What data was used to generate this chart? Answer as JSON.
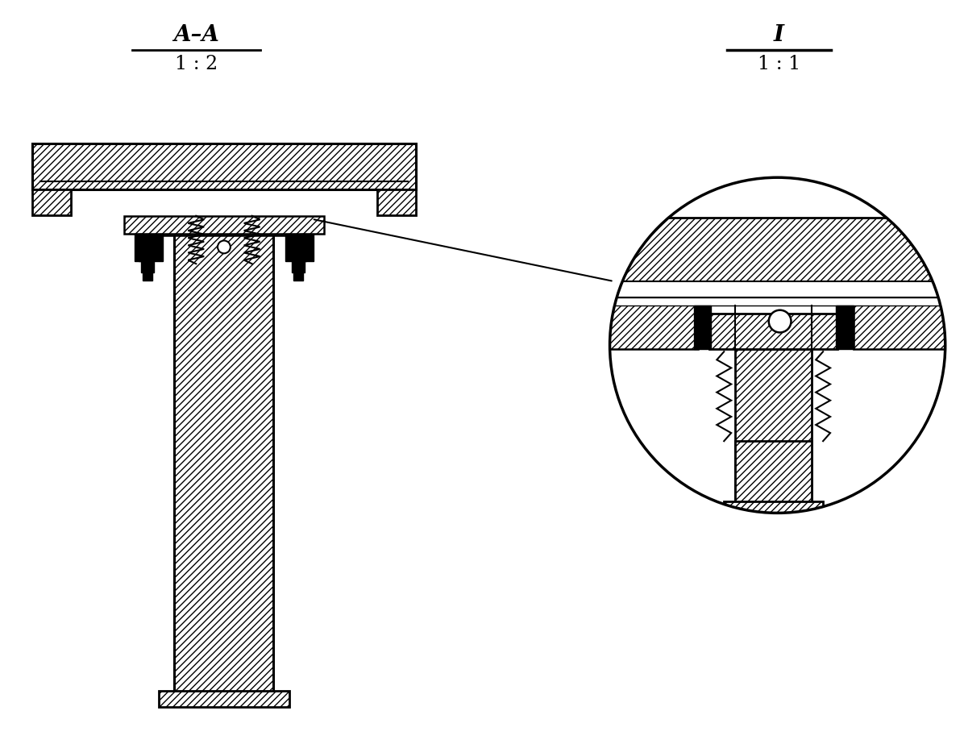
{
  "title_left": "A–A",
  "scale_left": "1 : 2",
  "title_right": "I",
  "scale_right": "1 : 1",
  "bg_color": "#ffffff",
  "line_color": "#000000",
  "fig_width": 11.96,
  "fig_height": 9.18
}
